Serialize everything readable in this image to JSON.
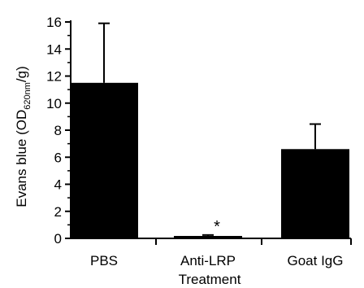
{
  "chart_data": {
    "type": "bar",
    "categories": [
      "PBS",
      "Anti-LRP",
      "Goat IgG"
    ],
    "values": [
      11.5,
      0.15,
      6.6
    ],
    "error_upper": [
      15.9,
      0.25,
      8.45
    ],
    "ylim": [
      0,
      16
    ],
    "yticks": [
      0,
      2,
      4,
      6,
      8,
      10,
      12,
      14,
      16
    ],
    "ylabel": {
      "before": "Evans blue (OD",
      "subscript": "620nm",
      "after": "/g)"
    },
    "xlabel": "Treatment",
    "annotations": [
      {
        "category": "Anti-LRP",
        "text": "*"
      }
    ],
    "bar_color": "#000000",
    "grid": false
  }
}
